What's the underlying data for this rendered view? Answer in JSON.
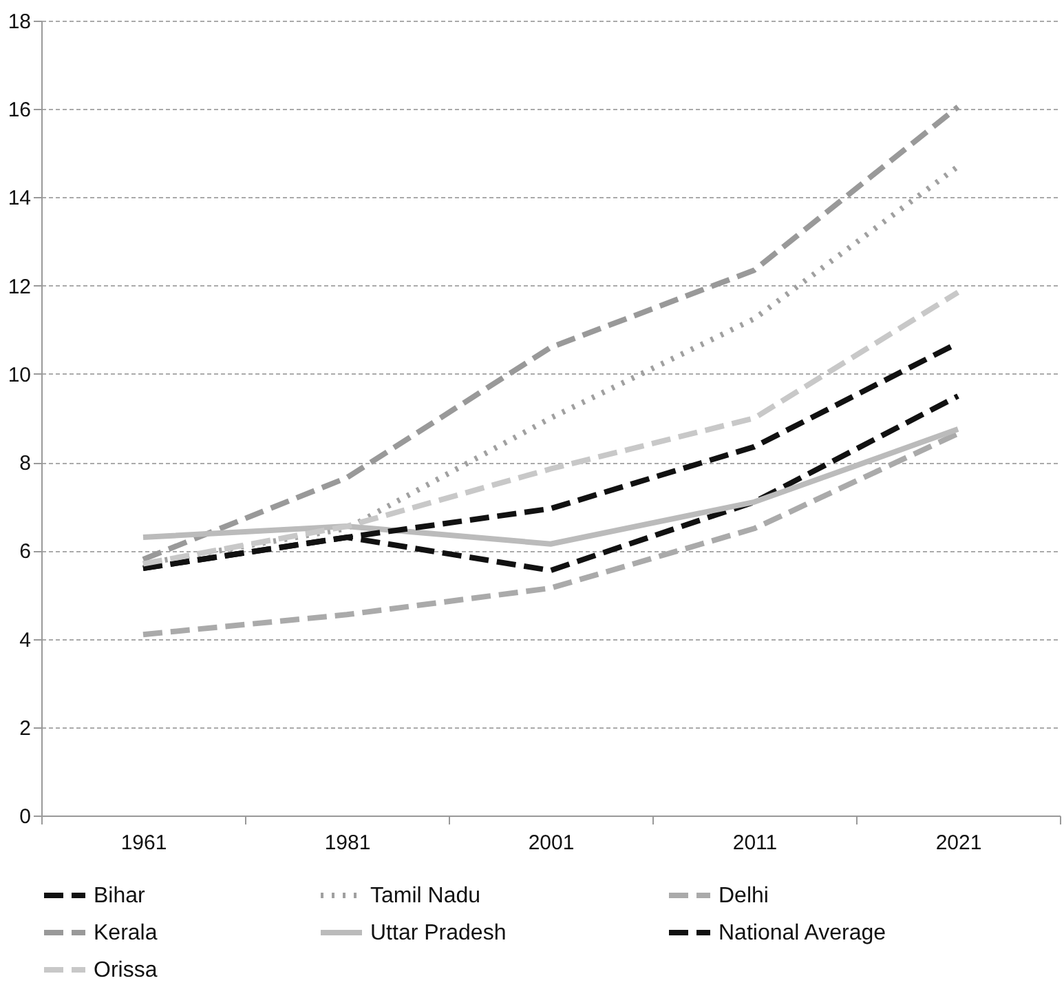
{
  "chart_data": {
    "type": "line",
    "categories": [
      "1961",
      "1981",
      "2001",
      "2011",
      "2021"
    ],
    "series": [
      {
        "name": "Bihar",
        "color": "#111111",
        "line_style": "dashed",
        "values": [
          5.6,
          6.3,
          5.55,
          7.1,
          9.5
        ]
      },
      {
        "name": "Tamil Nadu",
        "color": "#a0a0a0",
        "line_style": "dotted",
        "values": [
          5.7,
          6.5,
          9.0,
          11.25,
          14.7
        ]
      },
      {
        "name": "Delhi",
        "color": "#aaaaaa",
        "line_style": "dashed",
        "values": [
          4.1,
          4.55,
          5.15,
          6.5,
          8.65
        ]
      },
      {
        "name": "Kerala",
        "color": "#999999",
        "line_style": "dashed",
        "values": [
          5.8,
          7.65,
          10.6,
          12.35,
          16.05
        ]
      },
      {
        "name": "Uttar Pradesh",
        "color": "#bbbbbb",
        "line_style": "solid",
        "values": [
          6.3,
          6.55,
          6.15,
          7.1,
          8.75
        ]
      },
      {
        "name": "National Average",
        "color": "#111111",
        "line_style": "dashed",
        "values": [
          5.6,
          6.3,
          6.95,
          8.35,
          10.7
        ]
      },
      {
        "name": "Orissa",
        "color": "#c8c8c8",
        "line_style": "dashed",
        "values": [
          5.7,
          6.55,
          7.85,
          9.0,
          11.85
        ]
      }
    ],
    "ylim": [
      0,
      18
    ],
    "yticks": [
      0,
      2,
      4,
      6,
      8,
      10,
      12,
      14,
      16,
      18
    ],
    "grid": "y",
    "legend": "bottom",
    "marker": "none"
  }
}
